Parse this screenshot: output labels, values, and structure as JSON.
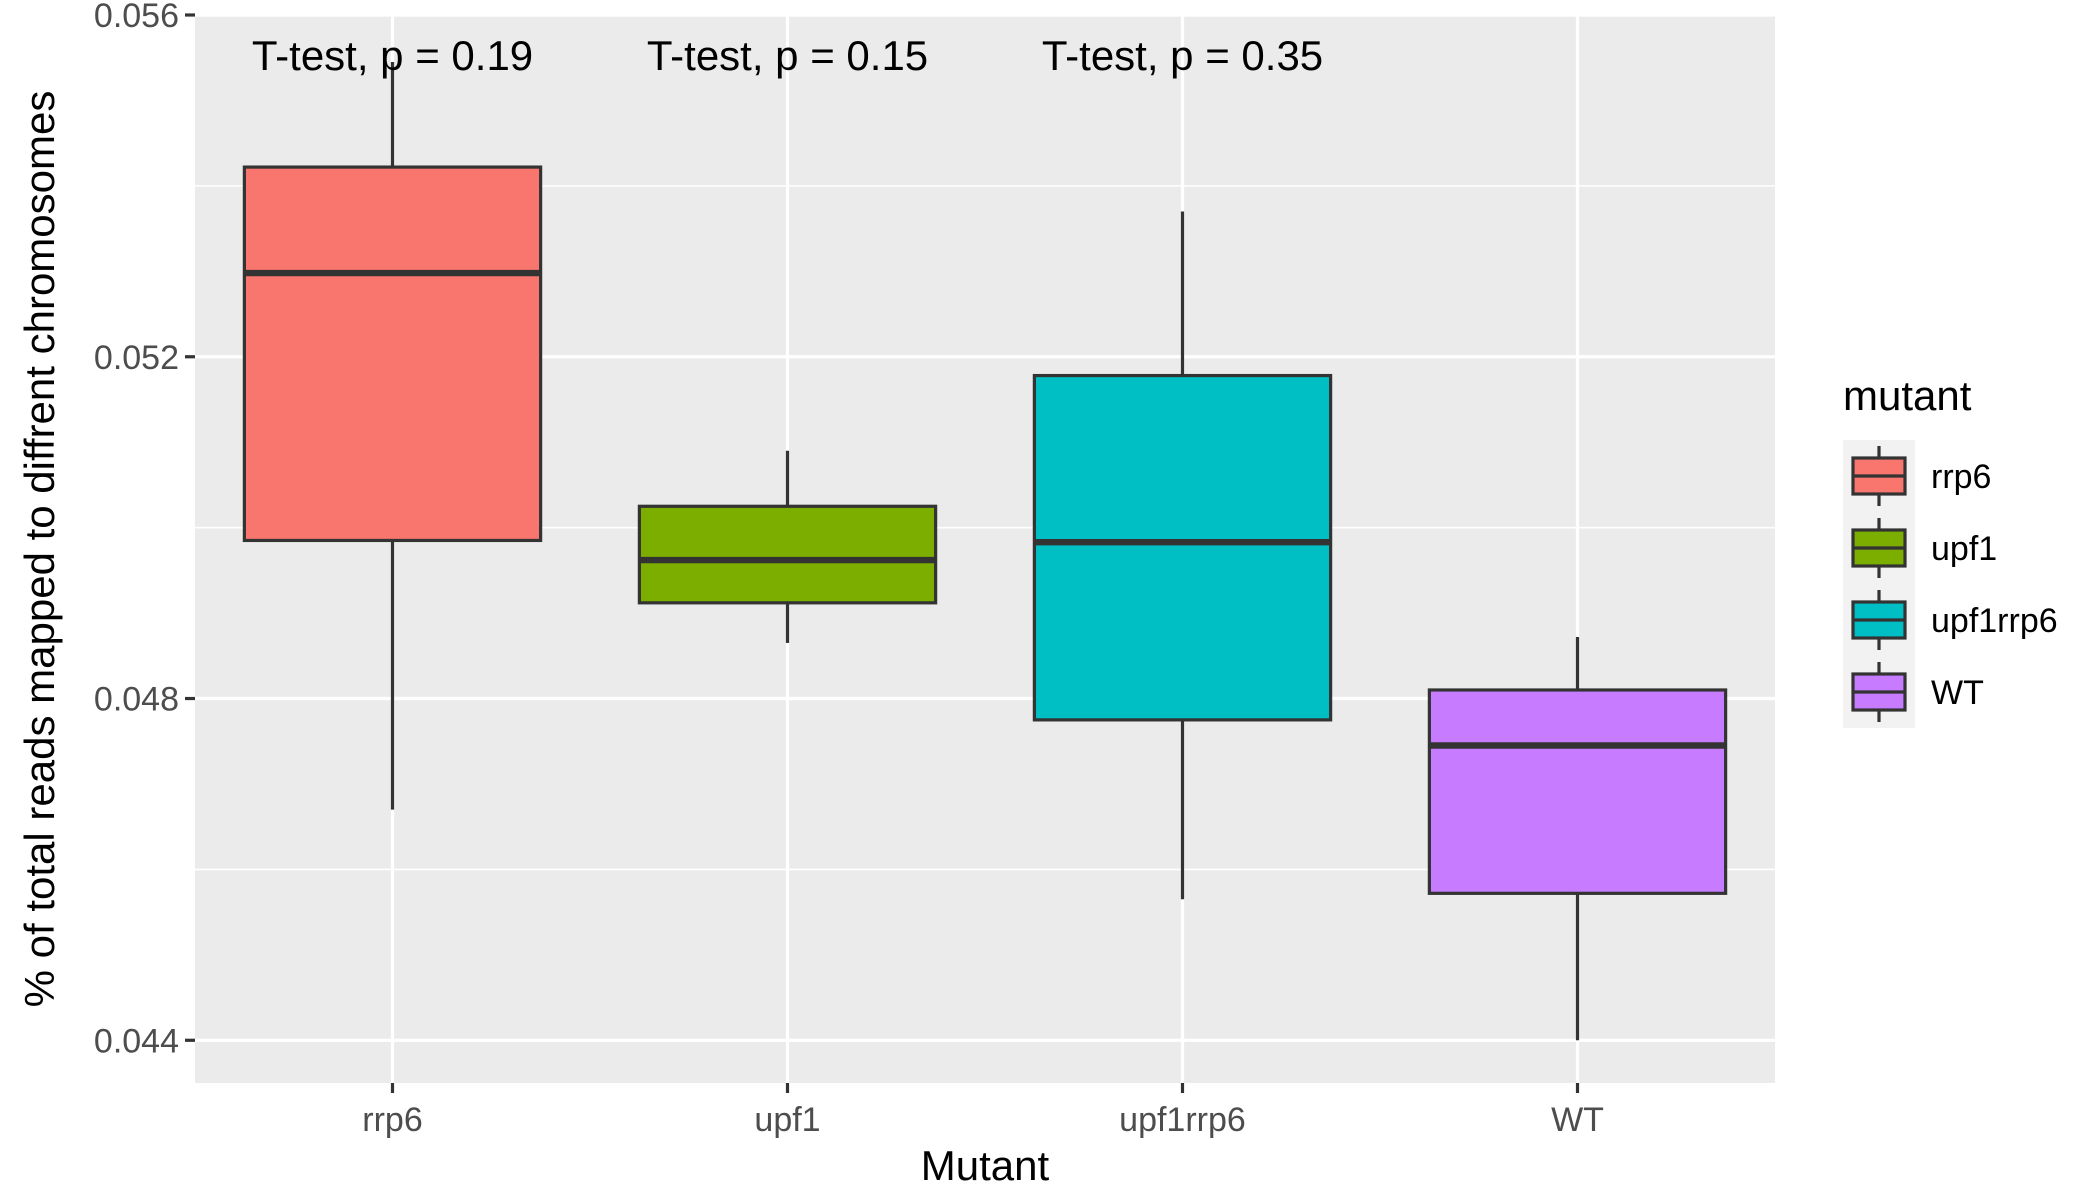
{
  "chart_data": {
    "type": "boxplot",
    "xlabel": "Mutant",
    "ylabel": "% of total reads mapped to diffrent chromosomes",
    "categories": [
      "rrp6",
      "upf1",
      "upf1rrp6",
      "WT"
    ],
    "ylim": [
      0.0435,
      0.056
    ],
    "yticks": [
      0.044,
      0.048,
      0.052,
      0.056
    ],
    "ytick_labels": [
      "0.044",
      "0.048",
      "0.052",
      "0.056"
    ],
    "boxes": [
      {
        "category": "rrp6",
        "whisker_low": 0.0467,
        "q1": 0.04985,
        "median": 0.05298,
        "q3": 0.05422,
        "whisker_high": 0.05545,
        "color": "#F8766D"
      },
      {
        "category": "upf1",
        "whisker_low": 0.04865,
        "q1": 0.04912,
        "median": 0.04962,
        "q3": 0.05025,
        "whisker_high": 0.0509,
        "color": "#7CAE00"
      },
      {
        "category": "upf1rrp6",
        "whisker_low": 0.04565,
        "q1": 0.04775,
        "median": 0.04983,
        "q3": 0.05178,
        "whisker_high": 0.0537,
        "color": "#00BFC4"
      },
      {
        "category": "WT",
        "whisker_low": 0.044,
        "q1": 0.04572,
        "median": 0.04745,
        "q3": 0.0481,
        "whisker_high": 0.04872,
        "color": "#C77CFF"
      }
    ],
    "annotations": [
      {
        "text": "T-test, p = 0.19",
        "category": "rrp6"
      },
      {
        "text": "T-test, p = 0.15",
        "category": "upf1"
      },
      {
        "text": "T-test, p = 0.35",
        "category": "upf1rrp6"
      }
    ],
    "legend": {
      "title": "mutant",
      "position": "right",
      "entries": [
        {
          "label": "rrp6",
          "color": "#F8766D"
        },
        {
          "label": "upf1",
          "color": "#7CAE00"
        },
        {
          "label": "upf1rrp6",
          "color": "#00BFC4"
        },
        {
          "label": "WT",
          "color": "#C77CFF"
        }
      ]
    },
    "grid": true,
    "panel_background": "#EBEBEB",
    "line_color": "#333333"
  }
}
